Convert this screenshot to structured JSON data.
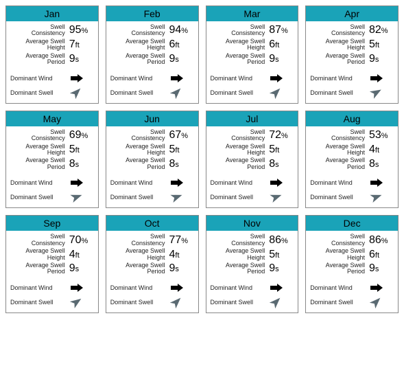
{
  "colors": {
    "header_bg": "#1aa3b8",
    "card_border": "#888888",
    "wind_arrow": "#000000",
    "swell_arrow": "#5a6a72",
    "text": "#000000"
  },
  "labels": {
    "swell_consistency": "Swell Consistency",
    "avg_swell_height": "Average Swell Height",
    "avg_swell_period": "Average Swell Period",
    "dominant_wind": "Dominant Wind",
    "dominant_swell": "Dominant Swell"
  },
  "units": {
    "percent": "%",
    "height": "ft",
    "period": "s"
  },
  "months": [
    {
      "name": "Jan",
      "consistency": 95,
      "height": 7,
      "period": 9,
      "wind_deg": 270,
      "swell_deg": 225
    },
    {
      "name": "Feb",
      "consistency": 94,
      "height": 6,
      "period": 9,
      "wind_deg": 270,
      "swell_deg": 225
    },
    {
      "name": "Mar",
      "consistency": 87,
      "height": 6,
      "period": 9,
      "wind_deg": 270,
      "swell_deg": 225
    },
    {
      "name": "Apr",
      "consistency": 82,
      "height": 5,
      "period": 9,
      "wind_deg": 270,
      "swell_deg": 240
    },
    {
      "name": "May",
      "consistency": 69,
      "height": 5,
      "period": 8,
      "wind_deg": 270,
      "swell_deg": 250
    },
    {
      "name": "Jun",
      "consistency": 67,
      "height": 5,
      "period": 8,
      "wind_deg": 270,
      "swell_deg": 250
    },
    {
      "name": "Jul",
      "consistency": 72,
      "height": 5,
      "period": 8,
      "wind_deg": 270,
      "swell_deg": 250
    },
    {
      "name": "Aug",
      "consistency": 53,
      "height": 4,
      "period": 8,
      "wind_deg": 270,
      "swell_deg": 250
    },
    {
      "name": "Sep",
      "consistency": 70,
      "height": 4,
      "period": 9,
      "wind_deg": 270,
      "swell_deg": 235
    },
    {
      "name": "Oct",
      "consistency": 77,
      "height": 4,
      "period": 9,
      "wind_deg": 270,
      "swell_deg": 225
    },
    {
      "name": "Nov",
      "consistency": 86,
      "height": 5,
      "period": 9,
      "wind_deg": 270,
      "swell_deg": 225
    },
    {
      "name": "Dec",
      "consistency": 86,
      "height": 6,
      "period": 9,
      "wind_deg": 270,
      "swell_deg": 225
    }
  ]
}
